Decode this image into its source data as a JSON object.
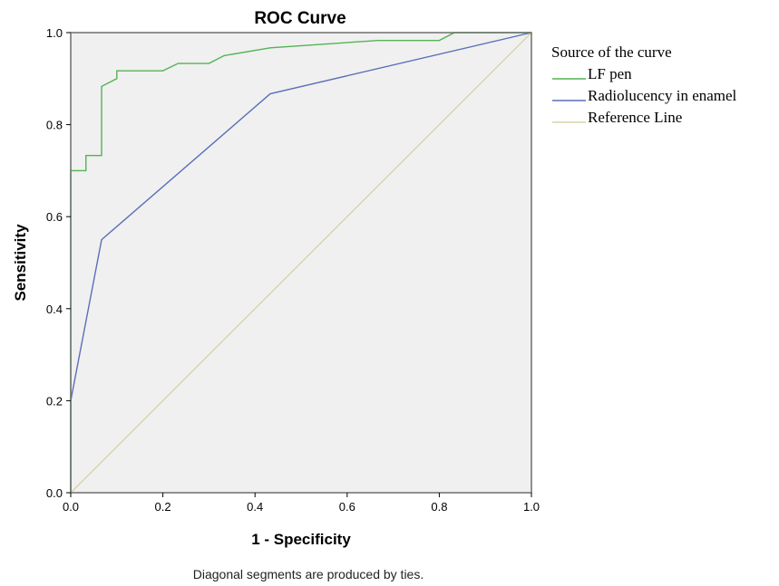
{
  "chart_data": {
    "type": "line",
    "title": "ROC Curve",
    "xlabel": "1 - Specificity",
    "ylabel": "Sensitivity",
    "xlim": [
      0.0,
      1.0
    ],
    "ylim": [
      0.0,
      1.0
    ],
    "xticks": [
      "0.0",
      "0.2",
      "0.4",
      "0.6",
      "0.8",
      "1.0"
    ],
    "yticks": [
      "0.0",
      "0.2",
      "0.4",
      "0.6",
      "0.8",
      "1.0"
    ],
    "grid": false,
    "legend_position": "right",
    "legend_title": "Source of the curve",
    "footnote": "Diagonal segments are produced by ties.",
    "plot_background": "#f0f0f0",
    "series": [
      {
        "name": "LF pen",
        "color": "#54b354",
        "x": [
          0.0,
          0.0,
          0.033,
          0.033,
          0.067,
          0.067,
          0.1,
          0.1,
          0.2,
          0.233,
          0.3,
          0.333,
          0.433,
          0.667,
          0.8,
          0.833,
          1.0
        ],
        "y": [
          0.0,
          0.7,
          0.7,
          0.733,
          0.733,
          0.883,
          0.9,
          0.917,
          0.917,
          0.933,
          0.933,
          0.95,
          0.967,
          0.983,
          0.983,
          1.0,
          1.0
        ]
      },
      {
        "name": "Radiolucency in enamel",
        "color": "#5b6fb7",
        "x": [
          0.0,
          0.0,
          0.067,
          0.433,
          1.0
        ],
        "y": [
          0.0,
          0.2,
          0.55,
          0.867,
          1.0
        ]
      },
      {
        "name": "Reference Line",
        "color": "#d9d3a6",
        "x": [
          0.0,
          1.0
        ],
        "y": [
          0.0,
          1.0
        ]
      }
    ]
  }
}
